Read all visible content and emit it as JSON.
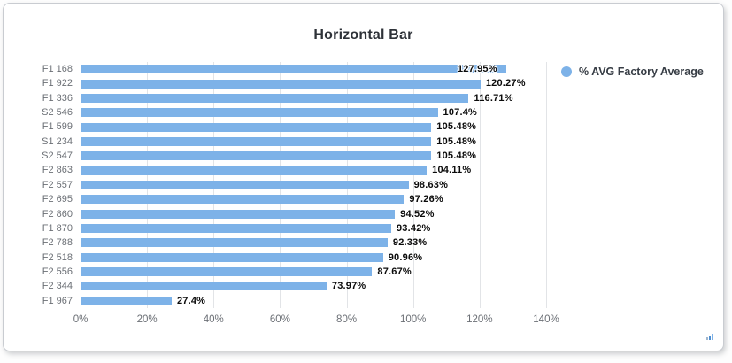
{
  "title": "Horizontal Bar",
  "chart_data": {
    "type": "bar",
    "orientation": "horizontal",
    "title": "Horizontal Bar",
    "categories": [
      "F1 168",
      "F1 922",
      "F1 336",
      "S2 546",
      "F1 599",
      "S1 234",
      "S2 547",
      "F2 863",
      "F2 557",
      "F2 695",
      "F2 860",
      "F1 870",
      "F2 788",
      "F2 518",
      "F2 556",
      "F2 344",
      "F1 967"
    ],
    "series": [
      {
        "name": "% AVG Factory Average",
        "color": "#7db2e8",
        "values": [
          127.95,
          120.27,
          116.71,
          107.4,
          105.48,
          105.48,
          105.48,
          104.11,
          98.63,
          97.26,
          94.52,
          93.42,
          92.33,
          90.96,
          87.67,
          73.97,
          27.4
        ]
      }
    ],
    "value_labels": [
      "127.95%",
      "120.27%",
      "116.71%",
      "107.4%",
      "105.48%",
      "105.48%",
      "105.48%",
      "104.11%",
      "98.63%",
      "97.26%",
      "94.52%",
      "93.42%",
      "92.33%",
      "90.96%",
      "87.67%",
      "73.97%",
      "27.4%"
    ],
    "x_ticks": [
      "0%",
      "20%",
      "40%",
      "60%",
      "80%",
      "100%",
      "120%",
      "140%"
    ],
    "xlim": [
      0,
      140
    ],
    "grid": true,
    "legend_position": "top-right",
    "colors": {
      "bar": "#7db2e8",
      "grid": "#e2e4e7",
      "axis_label": "#6b6f75",
      "value_label": "#0b0b0b",
      "title": "#2e3238",
      "legend_text": "#373d45"
    }
  }
}
